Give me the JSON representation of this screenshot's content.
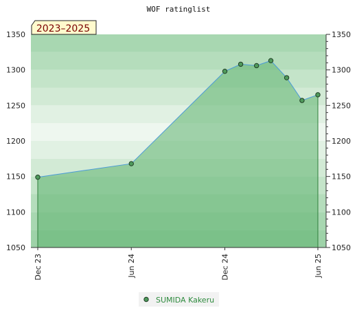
{
  "chart_data": {
    "type": "area",
    "title": "WOF ratinglist",
    "period_label": "2023–2025",
    "xlabel": "",
    "ylabel": "",
    "x_ticks": [
      "Dec 23",
      "Jun 24",
      "Dec 24",
      "Jun 25"
    ],
    "ylim": [
      1050,
      1350
    ],
    "y_ticks": [
      1050,
      1100,
      1150,
      1200,
      1250,
      1300,
      1350
    ],
    "legend_position": "bottom-center",
    "series": [
      {
        "name": "SUMIDA Kakeru",
        "points": [
          {
            "x": "2023-12",
            "y": 1149
          },
          {
            "x": "2024-06",
            "y": 1168
          },
          {
            "x": "2024-12",
            "y": 1298
          },
          {
            "x": "2025-01",
            "y": 1308
          },
          {
            "x": "2025-02",
            "y": 1306
          },
          {
            "x": "2025-03",
            "y": 1313
          },
          {
            "x": "2025-04",
            "y": 1289
          },
          {
            "x": "2025-05",
            "y": 1257
          },
          {
            "x": "2025-06",
            "y": 1265
          }
        ]
      }
    ],
    "colors": {
      "area_fill": "#5fb36f",
      "line": "#4a9ad8",
      "marker": "#4f9a5c",
      "legend_text": "#2e8b3e",
      "period_badge_bg": "#fffacd",
      "period_badge_text": "#7a0000"
    }
  }
}
